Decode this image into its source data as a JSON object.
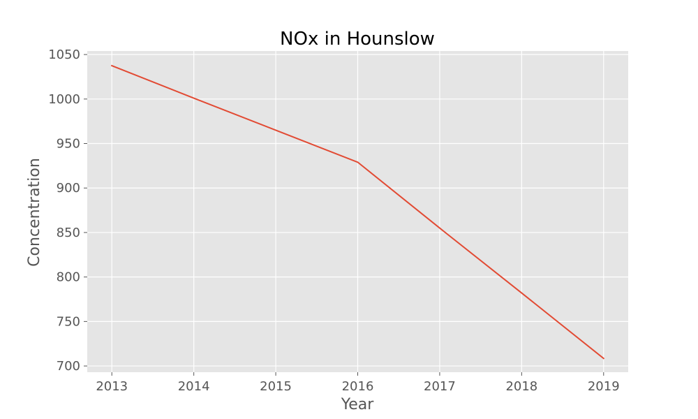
{
  "chart_data": {
    "type": "line",
    "title": "NOx in Hounslow",
    "xlabel": "Year",
    "ylabel": "Concentration",
    "x": [
      2013,
      2014,
      2015,
      2016,
      2017,
      2018,
      2019
    ],
    "series": [
      {
        "values": [
          1037.5,
          1001,
          965,
          929,
          855,
          782,
          708.5
        ],
        "color": "#e24a33"
      }
    ],
    "xlim": [
      2012.7,
      2019.3
    ],
    "ylim": [
      693,
      1054
    ],
    "xticks": [
      2013,
      2014,
      2015,
      2016,
      2017,
      2018,
      2019
    ],
    "yticks": [
      700,
      750,
      800,
      850,
      900,
      950,
      1000,
      1050
    ],
    "grid": true,
    "style": {
      "plot_background": "#e5e5e5",
      "grid_color": "#ffffff",
      "tick_color": "#555555"
    }
  }
}
